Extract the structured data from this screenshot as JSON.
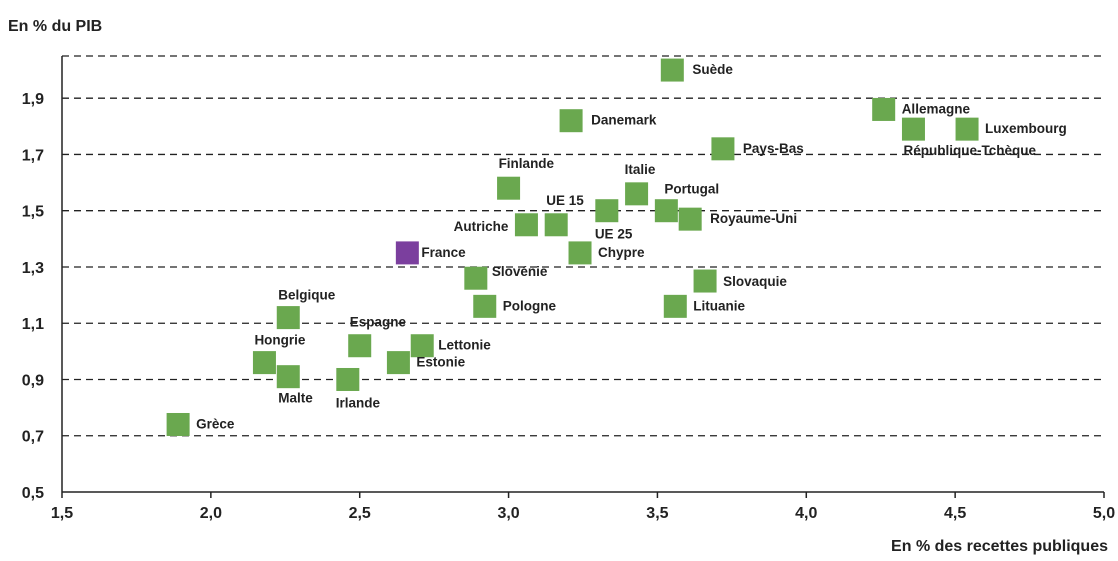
{
  "chart_data": {
    "type": "scatter",
    "ylabel": "En % du PIB",
    "xlabel": "En % des recettes publiques",
    "xlim": [
      1.5,
      5.0
    ],
    "ylim": [
      0.5,
      2.05
    ],
    "xticks": [
      "1,5",
      "2,0",
      "2,5",
      "3,0",
      "3,5",
      "4,0",
      "4,5",
      "5,0"
    ],
    "yticks": [
      "0,5",
      "0,7",
      "0,9",
      "1,1",
      "1,3",
      "1,5",
      "1,7",
      "1,9"
    ],
    "grid": "horizontal-dashed",
    "colors": {
      "default": "#6aa84f",
      "highlight": "#7b3f9e"
    },
    "points": [
      {
        "label": "Suède",
        "x": 3.55,
        "y": 2.0
      },
      {
        "label": "Allemagne",
        "x": 4.26,
        "y": 1.86
      },
      {
        "label": "République-Tchèque",
        "x": 4.36,
        "y": 1.79
      },
      {
        "label": "Luxembourg",
        "x": 4.54,
        "y": 1.79
      },
      {
        "label": "Danemark",
        "x": 3.21,
        "y": 1.82
      },
      {
        "label": "Pays-Bas",
        "x": 3.72,
        "y": 1.72
      },
      {
        "label": "Finlande",
        "x": 3.0,
        "y": 1.58
      },
      {
        "label": "Italie",
        "x": 3.43,
        "y": 1.56
      },
      {
        "label": "Portugal",
        "x": 3.53,
        "y": 1.5
      },
      {
        "label": "UE 15",
        "x": 3.16,
        "y": 1.45
      },
      {
        "label": "UE 25",
        "x": 3.33,
        "y": 1.5
      },
      {
        "label": "Royaume-Uni",
        "x": 3.61,
        "y": 1.47
      },
      {
        "label": "Autriche",
        "x": 3.06,
        "y": 1.45
      },
      {
        "label": "Chypre",
        "x": 3.24,
        "y": 1.35
      },
      {
        "label": "France",
        "x": 2.66,
        "y": 1.35,
        "highlight": true
      },
      {
        "label": "Slovénie",
        "x": 2.89,
        "y": 1.26
      },
      {
        "label": "Pologne",
        "x": 2.92,
        "y": 1.16
      },
      {
        "label": "Slovaquie",
        "x": 3.66,
        "y": 1.25
      },
      {
        "label": "Lituanie",
        "x": 3.56,
        "y": 1.16
      },
      {
        "label": "Belgique",
        "x": 2.26,
        "y": 1.12
      },
      {
        "label": "Espagne",
        "x": 2.5,
        "y": 1.02
      },
      {
        "label": "Lettonie",
        "x": 2.71,
        "y": 1.02
      },
      {
        "label": "Estonie",
        "x": 2.63,
        "y": 0.96
      },
      {
        "label": "Hongrie",
        "x": 2.18,
        "y": 0.96
      },
      {
        "label": "Malte",
        "x": 2.26,
        "y": 0.91
      },
      {
        "label": "Irlande",
        "x": 2.46,
        "y": 0.9
      },
      {
        "label": "Grèce",
        "x": 1.89,
        "y": 0.74
      }
    ]
  }
}
